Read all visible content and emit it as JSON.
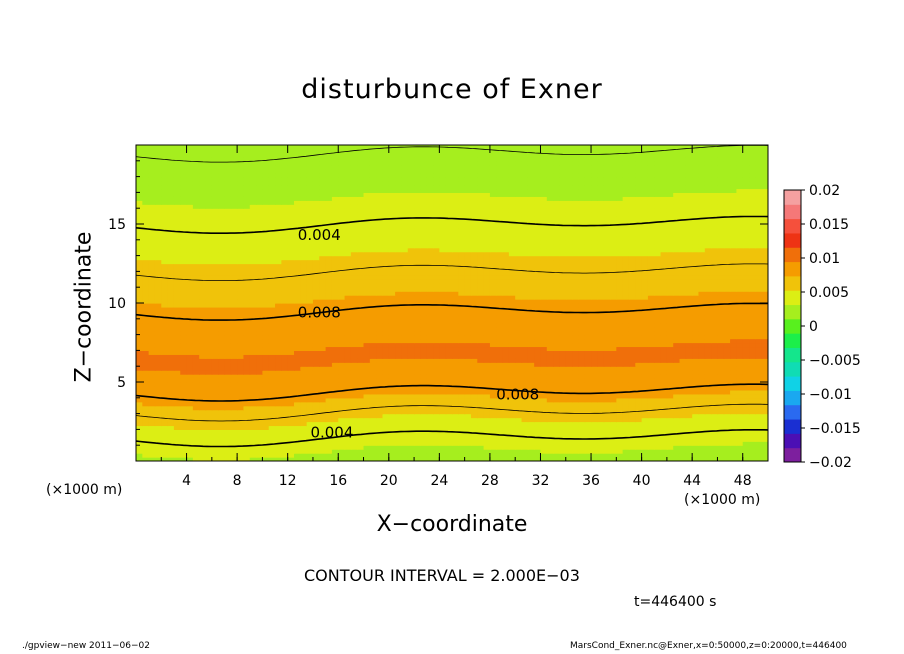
{
  "chart_data": {
    "type": "heatmap",
    "title": "disturbunce of Exner",
    "xlabel": "X−coordinate",
    "ylabel": "Z−coordinate",
    "xscale_label": "(×1000 m)",
    "zscale_label": "(×1000 m)",
    "xlim": [
      0,
      50
    ],
    "ylim": [
      0,
      20
    ],
    "x_ticks": [
      4,
      8,
      12,
      16,
      20,
      24,
      28,
      32,
      36,
      40,
      44,
      48
    ],
    "y_ticks": [
      5,
      10,
      15
    ],
    "colorbar": {
      "min": -0.02,
      "max": 0.02,
      "tick_values": [
        0.02,
        0.015,
        0.01,
        0.005,
        0,
        -0.005,
        -0.01,
        -0.015,
        -0.02
      ],
      "tick_labels": [
        "0.02",
        "0.015",
        "0.01",
        "0.005",
        "0",
        "−0.005",
        "−0.01",
        "−0.015",
        "−0.02"
      ]
    },
    "contour_interval": 0.002,
    "contour_labels": [
      {
        "text": "0.004",
        "x": 14.5,
        "z": 14.3
      },
      {
        "text": "0.008",
        "x": 14.5,
        "z": 9.4
      },
      {
        "text": "0.008",
        "x": 30.2,
        "z": 4.2
      },
      {
        "text": "0.004",
        "x": 15.5,
        "z": 1.8
      }
    ],
    "field_profile": [
      {
        "z": 0.0,
        "value": 0.0025
      },
      {
        "z": 1.0,
        "value": 0.0035
      },
      {
        "z": 2.0,
        "value": 0.0045
      },
      {
        "z": 3.0,
        "value": 0.0058
      },
      {
        "z": 4.0,
        "value": 0.0075
      },
      {
        "z": 5.0,
        "value": 0.0088
      },
      {
        "z": 6.5,
        "value": 0.0097
      },
      {
        "z": 8.0,
        "value": 0.0092
      },
      {
        "z": 9.5,
        "value": 0.008
      },
      {
        "z": 11.0,
        "value": 0.0068
      },
      {
        "z": 12.5,
        "value": 0.0056
      },
      {
        "z": 14.0,
        "value": 0.0046
      },
      {
        "z": 15.5,
        "value": 0.0037
      },
      {
        "z": 17.0,
        "value": 0.003
      },
      {
        "z": 18.5,
        "value": 0.0024
      },
      {
        "z": 20.0,
        "value": 0.0018
      }
    ]
  },
  "annotations": {
    "contour_interval_text": "CONTOUR INTERVAL = 2.000E−03",
    "time_text": "t=446400  s",
    "footer_left": "./gpview−new   2011−06−02",
    "footer_right": "MarsCond_Exner.nc@Exner,x=0:50000,z=0:20000,t=446400"
  },
  "colors": {
    "colorbar_bands": [
      "#7d1f9e",
      "#4b0fb4",
      "#1a2fd2",
      "#2a6af0",
      "#1aa8f0",
      "#10d2e6",
      "#10dcb4",
      "#14e68c",
      "#1cef4a",
      "#58f01e",
      "#a6ee1e",
      "#dcee14",
      "#f0c30a",
      "#f59c00",
      "#f06f0a",
      "#ee3314",
      "#f5503c",
      "#f57878",
      "#f5a0a0"
    ],
    "contour_line": "#000000"
  }
}
